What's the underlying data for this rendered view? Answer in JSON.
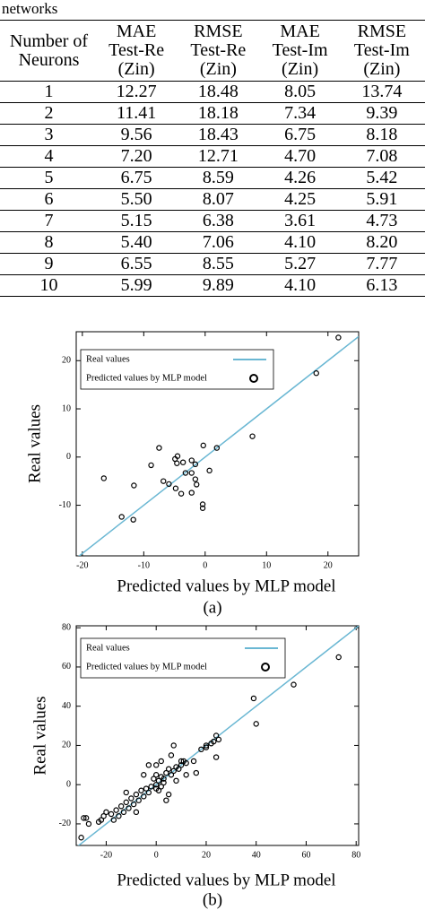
{
  "caption": "networks",
  "table": {
    "header": [
      "Number of Neurons",
      "MAE Test-Re (Zin)",
      "RMSE Test-Re (Zin)",
      "MAE Test-Im (Zin)",
      "RMSE Test-Im (Zin)"
    ],
    "rows": [
      [
        "1",
        "12.27",
        "18.48",
        "8.05",
        "13.74"
      ],
      [
        "2",
        "11.41",
        "18.18",
        "7.34",
        "9.39"
      ],
      [
        "3",
        "9.56",
        "18.43",
        "6.75",
        "8.18"
      ],
      [
        "4",
        "7.20",
        "12.71",
        "4.70",
        "7.08"
      ],
      [
        "5",
        "6.75",
        "8.59",
        "4.26",
        "5.42"
      ],
      [
        "6",
        "5.50",
        "8.07",
        "4.25",
        "5.91"
      ],
      [
        "7",
        "5.15",
        "6.38",
        "3.61",
        "4.73"
      ],
      [
        "8",
        "5.40",
        "7.06",
        "4.10",
        "8.20"
      ],
      [
        "9",
        "6.55",
        "8.55",
        "5.27",
        "7.77"
      ],
      [
        "10",
        "5.99",
        "9.89",
        "4.10",
        "6.13"
      ]
    ]
  },
  "chart_data": [
    {
      "type": "scatter",
      "caption": "(a)",
      "x_label": "Predicted values by MLP model",
      "y_label": "Real values",
      "xlim": [
        -21,
        25
      ],
      "ylim": [
        -20.5,
        26
      ],
      "xticks": [
        -20,
        -10,
        0,
        10,
        20
      ],
      "yticks": [
        -10,
        0,
        10,
        20
      ],
      "legend": "upper left",
      "series": [
        {
          "name": "Real values",
          "type": "line",
          "color": "#6ab7d3",
          "x": [
            -21,
            25
          ],
          "values": [
            -21,
            25
          ]
        },
        {
          "name": "Predicted values by MLP model",
          "type": "scatter",
          "color": "#000000",
          "x": [
            21.7,
            18.1,
            7.7,
            1.9,
            -0.3,
            -7.5,
            -4.9,
            -4.5,
            -4.6,
            -3.6,
            -8.8,
            -2.2,
            -1.6,
            -3.2,
            0.7,
            -2.2,
            -1.6,
            -1.4,
            -5.9,
            -6.8,
            -11.6,
            -4.8,
            -3.9,
            -2.2,
            -16.5,
            -0.4,
            -0.4,
            -13.6,
            -11.7
          ],
          "values": [
            24.8,
            17.4,
            4.3,
            1.9,
            2.4,
            1.9,
            -0.4,
            0.2,
            -1.3,
            -1.1,
            -1.7,
            -0.7,
            -1.5,
            -3.3,
            -2.8,
            -3.3,
            -4.6,
            -5.7,
            -5.6,
            -5.0,
            -5.9,
            -6.5,
            -7.6,
            -7.4,
            -4.4,
            -9.8,
            -10.6,
            -12.4,
            -13
          ]
        }
      ]
    },
    {
      "type": "scatter",
      "caption": "(b)",
      "x_label": "Predicted values by MLP model",
      "y_label": "Real values",
      "xlim": [
        -32,
        81
      ],
      "ylim": [
        -31,
        81
      ],
      "xticks": [
        -20,
        0,
        20,
        40,
        60,
        80
      ],
      "yticks": [
        -20,
        0,
        20,
        40,
        60,
        80
      ],
      "legend": "upper left",
      "series": [
        {
          "name": "Real values",
          "type": "line",
          "color": "#6ab7d3",
          "x": [
            -32,
            81
          ],
          "values": [
            -32,
            81
          ]
        },
        {
          "name": "Predicted values by MLP model",
          "type": "scatter",
          "color": "#000000",
          "x": [
            73,
            55,
            39,
            40,
            24,
            22,
            25,
            23,
            20,
            24,
            20,
            18,
            15,
            12,
            11,
            10,
            8,
            9,
            10,
            7,
            6,
            5,
            4,
            3,
            2,
            1,
            0,
            0,
            -1,
            2,
            3,
            1,
            0,
            -2,
            -3,
            -4,
            -5,
            -6,
            -7,
            -8,
            -9,
            -10,
            -11,
            -12,
            -13,
            -14,
            -15,
            -16,
            -17,
            -18,
            -20,
            -21,
            -22,
            -23,
            -28,
            -29,
            -27,
            -30,
            5,
            8,
            12,
            -5,
            -3,
            2,
            6,
            -8,
            -12,
            0,
            4,
            16,
            7
          ],
          "values": [
            65,
            51,
            44,
            31,
            25,
            21,
            23,
            22,
            19,
            14,
            20,
            18,
            12,
            11,
            12,
            10,
            9,
            8,
            12,
            7,
            5,
            8,
            6,
            3,
            4,
            2,
            0,
            5,
            3,
            -1,
            1,
            -3,
            -2,
            -1,
            -4,
            -2,
            -6,
            -3,
            -8,
            -5,
            -10,
            -7,
            -12,
            -9,
            -14,
            -11,
            -16,
            -13,
            -18,
            -15,
            -14,
            -16,
            -18,
            -19,
            -17,
            -17,
            -20,
            -27,
            -5,
            2,
            5,
            5,
            10,
            12,
            15,
            -14,
            -4,
            10,
            -8,
            6,
            20
          ]
        }
      ]
    }
  ]
}
